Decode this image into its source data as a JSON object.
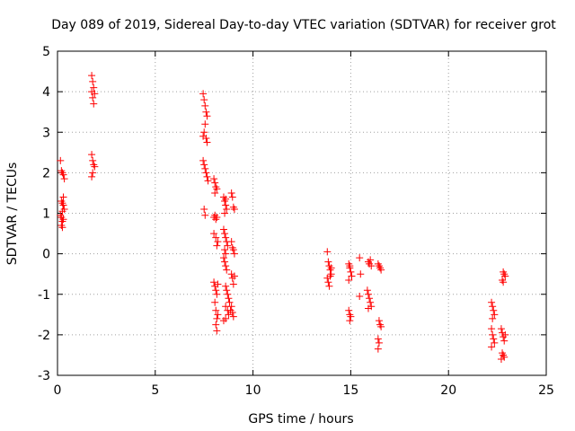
{
  "chart_data": {
    "type": "scatter",
    "title": "Day 089 of 2019, Sidereal Day-to-day VTEC variation (SDTVAR) for receiver grot",
    "xlabel": "GPS time / hours",
    "ylabel": "SDTVAR / TECUs",
    "xlim": [
      0,
      25
    ],
    "ylim": [
      -3,
      5
    ],
    "xticks": [
      0,
      5,
      10,
      15,
      20,
      25
    ],
    "yticks": [
      -3,
      -2,
      -1,
      0,
      1,
      2,
      3,
      4,
      5
    ],
    "grid": true,
    "marker": "+",
    "color": "#ff0000",
    "series": [
      {
        "name": "SDTVAR",
        "points": [
          [
            0.15,
            2.3
          ],
          [
            0.2,
            2.05
          ],
          [
            0.25,
            2.0
          ],
          [
            0.3,
            1.95
          ],
          [
            0.35,
            1.85
          ],
          [
            0.2,
            1.3
          ],
          [
            0.25,
            1.25
          ],
          [
            0.3,
            1.2
          ],
          [
            0.35,
            1.1
          ],
          [
            0.25,
            1.05
          ],
          [
            0.3,
            1.4
          ],
          [
            0.15,
            0.95
          ],
          [
            0.2,
            0.9
          ],
          [
            0.25,
            0.8
          ],
          [
            0.2,
            0.7
          ],
          [
            0.3,
            0.85
          ],
          [
            0.25,
            0.65
          ],
          [
            1.75,
            4.4
          ],
          [
            1.8,
            4.25
          ],
          [
            1.85,
            4.1
          ],
          [
            1.75,
            4.0
          ],
          [
            1.9,
            3.95
          ],
          [
            1.8,
            3.85
          ],
          [
            1.85,
            3.7
          ],
          [
            1.75,
            2.45
          ],
          [
            1.8,
            2.3
          ],
          [
            1.85,
            2.2
          ],
          [
            1.9,
            2.15
          ],
          [
            1.8,
            2.0
          ],
          [
            1.75,
            1.9
          ],
          [
            7.45,
            3.95
          ],
          [
            7.5,
            3.8
          ],
          [
            7.55,
            3.65
          ],
          [
            7.6,
            3.5
          ],
          [
            7.65,
            3.4
          ],
          [
            7.55,
            3.2
          ],
          [
            7.5,
            3.0
          ],
          [
            7.45,
            2.9
          ],
          [
            7.6,
            2.85
          ],
          [
            7.65,
            2.75
          ],
          [
            7.45,
            2.3
          ],
          [
            7.5,
            2.2
          ],
          [
            7.55,
            2.1
          ],
          [
            7.6,
            2.0
          ],
          [
            7.65,
            1.9
          ],
          [
            7.7,
            1.8
          ],
          [
            7.5,
            1.1
          ],
          [
            7.55,
            0.95
          ],
          [
            8.0,
            1.85
          ],
          [
            8.05,
            1.75
          ],
          [
            8.1,
            1.65
          ],
          [
            8.15,
            1.6
          ],
          [
            8.05,
            1.5
          ],
          [
            8.0,
            0.9
          ],
          [
            8.05,
            0.95
          ],
          [
            8.1,
            0.85
          ],
          [
            8.15,
            0.9
          ],
          [
            8.0,
            0.5
          ],
          [
            8.1,
            0.4
          ],
          [
            8.2,
            0.3
          ],
          [
            8.15,
            0.2
          ],
          [
            8.0,
            -0.7
          ],
          [
            8.05,
            -0.8
          ],
          [
            8.1,
            -0.9
          ],
          [
            8.15,
            -1.0
          ],
          [
            8.2,
            -0.75
          ],
          [
            8.05,
            -1.2
          ],
          [
            8.1,
            -1.4
          ],
          [
            8.15,
            -1.6
          ],
          [
            8.2,
            -1.5
          ],
          [
            8.1,
            -1.75
          ],
          [
            8.15,
            -1.9
          ],
          [
            8.5,
            1.4
          ],
          [
            8.55,
            1.3
          ],
          [
            8.6,
            1.2
          ],
          [
            8.65,
            1.1
          ],
          [
            8.55,
            1.0
          ],
          [
            8.6,
            1.35
          ],
          [
            8.5,
            0.6
          ],
          [
            8.55,
            0.5
          ],
          [
            8.6,
            0.4
          ],
          [
            8.65,
            0.3
          ],
          [
            8.7,
            0.2
          ],
          [
            8.55,
            0.1
          ],
          [
            8.6,
            0.0
          ],
          [
            8.5,
            -0.1
          ],
          [
            8.55,
            -0.2
          ],
          [
            8.6,
            -0.3
          ],
          [
            8.65,
            -0.4
          ],
          [
            8.6,
            -0.8
          ],
          [
            8.65,
            -0.9
          ],
          [
            8.7,
            -1.0
          ],
          [
            8.75,
            -1.1
          ],
          [
            8.8,
            -1.2
          ],
          [
            8.6,
            -1.3
          ],
          [
            8.7,
            -1.4
          ],
          [
            8.75,
            -1.5
          ],
          [
            8.6,
            -1.6
          ],
          [
            8.5,
            -1.65
          ],
          [
            8.9,
            1.5
          ],
          [
            8.95,
            1.4
          ],
          [
            9.0,
            1.15
          ],
          [
            9.05,
            1.1
          ],
          [
            8.9,
            0.3
          ],
          [
            8.95,
            0.15
          ],
          [
            9.0,
            0.1
          ],
          [
            9.05,
            0.0
          ],
          [
            8.9,
            -0.5
          ],
          [
            8.95,
            -0.6
          ],
          [
            9.0,
            -0.75
          ],
          [
            9.05,
            -0.55
          ],
          [
            8.9,
            -1.3
          ],
          [
            8.95,
            -1.45
          ],
          [
            9.0,
            -1.55
          ],
          [
            8.85,
            -1.4
          ],
          [
            13.8,
            0.05
          ],
          [
            13.85,
            -0.2
          ],
          [
            13.9,
            -0.3
          ],
          [
            13.95,
            -0.4
          ],
          [
            14.0,
            -0.5
          ],
          [
            13.8,
            -0.6
          ],
          [
            13.85,
            -0.7
          ],
          [
            13.9,
            -0.8
          ],
          [
            13.95,
            -0.55
          ],
          [
            14.0,
            -0.35
          ],
          [
            14.9,
            -0.25
          ],
          [
            14.95,
            -0.35
          ],
          [
            15.0,
            -0.45
          ],
          [
            15.05,
            -0.55
          ],
          [
            14.9,
            -0.65
          ],
          [
            14.95,
            -0.3
          ],
          [
            14.9,
            -1.4
          ],
          [
            14.95,
            -1.5
          ],
          [
            15.0,
            -1.55
          ],
          [
            14.95,
            -1.65
          ],
          [
            15.45,
            -0.1
          ],
          [
            15.5,
            -0.5
          ],
          [
            15.45,
            -1.05
          ],
          [
            15.9,
            -0.2
          ],
          [
            15.95,
            -0.25
          ],
          [
            16.0,
            -0.15
          ],
          [
            16.05,
            -0.3
          ],
          [
            15.85,
            -0.9
          ],
          [
            15.9,
            -1.0
          ],
          [
            15.95,
            -1.1
          ],
          [
            16.0,
            -1.2
          ],
          [
            16.05,
            -1.3
          ],
          [
            15.9,
            -1.35
          ],
          [
            16.4,
            -0.25
          ],
          [
            16.45,
            -0.3
          ],
          [
            16.5,
            -0.35
          ],
          [
            16.55,
            -0.4
          ],
          [
            16.45,
            -1.65
          ],
          [
            16.5,
            -1.75
          ],
          [
            16.55,
            -1.8
          ],
          [
            16.4,
            -2.1
          ],
          [
            16.45,
            -2.2
          ],
          [
            16.4,
            -2.35
          ],
          [
            22.2,
            -1.2
          ],
          [
            22.25,
            -1.3
          ],
          [
            22.3,
            -1.4
          ],
          [
            22.35,
            -1.5
          ],
          [
            22.25,
            -1.6
          ],
          [
            22.2,
            -1.85
          ],
          [
            22.25,
            -2.0
          ],
          [
            22.3,
            -2.1
          ],
          [
            22.35,
            -2.2
          ],
          [
            22.2,
            -2.3
          ],
          [
            22.8,
            -0.45
          ],
          [
            22.85,
            -0.5
          ],
          [
            22.9,
            -0.55
          ],
          [
            22.75,
            -0.65
          ],
          [
            22.8,
            -0.7
          ],
          [
            22.7,
            -1.85
          ],
          [
            22.75,
            -1.95
          ],
          [
            22.8,
            -2.05
          ],
          [
            22.85,
            -2.15
          ],
          [
            22.9,
            -2.0
          ],
          [
            22.75,
            -2.45
          ],
          [
            22.8,
            -2.5
          ],
          [
            22.85,
            -2.55
          ],
          [
            22.7,
            -2.6
          ]
        ]
      }
    ]
  }
}
